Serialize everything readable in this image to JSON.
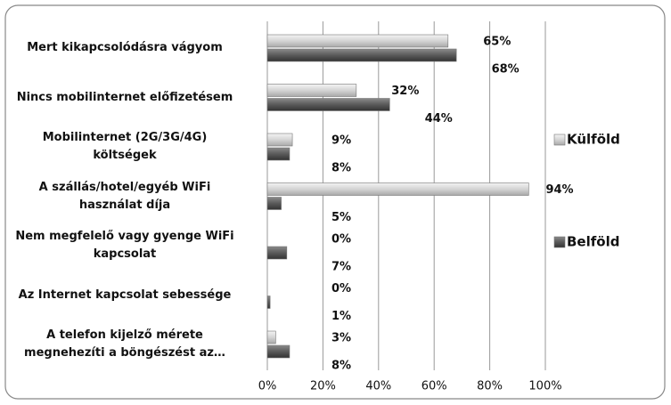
{
  "chart_data": {
    "type": "bar",
    "orientation": "horizontal",
    "categories": [
      "Mert kikapcsolódásra vágyom",
      "Nincs mobilinternet előfizetésem",
      "Mobilinternet (2G/3G/4G)\nköltségek",
      "A szállás/hotel/egyéb WiFi\nhasználat díja",
      "Nem megfelelő vagy gyenge WiFi\nkapcsolat",
      "Az Internet kapcsolat sebessége",
      "A telefon kijelző mérete\nmegnehezíti a böngészést az…"
    ],
    "series": [
      {
        "name": "Külföld",
        "color": "#d4d4d4",
        "values": [
          65,
          32,
          9,
          94,
          0,
          0,
          3
        ],
        "value_labels": [
          "65%",
          "32%",
          "9%",
          "94%",
          "0%",
          "0%",
          "3%"
        ]
      },
      {
        "name": "Belföld",
        "color": "#5a5a5a",
        "values": [
          68,
          44,
          8,
          5,
          7,
          1,
          8
        ],
        "value_labels": [
          "68%",
          "44%",
          "8%",
          "5%",
          "7%",
          "1%",
          "8%"
        ]
      }
    ],
    "xlim": [
      0,
      100
    ],
    "xticks": [
      {
        "value": 0,
        "label": "0%"
      },
      {
        "value": 20,
        "label": "20%"
      },
      {
        "value": 40,
        "label": "40%"
      },
      {
        "value": 60,
        "label": "60%"
      },
      {
        "value": 80,
        "label": "80%"
      },
      {
        "value": 100,
        "label": "100%"
      }
    ],
    "grid": true,
    "legend": "right"
  }
}
